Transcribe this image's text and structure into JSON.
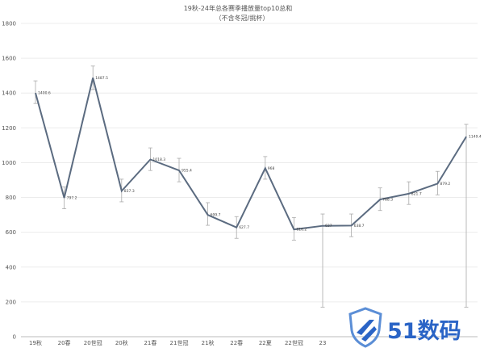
{
  "chart_data": {
    "type": "line",
    "title": "19秋-24年总各赛季播放量top10总和",
    "subtitle": "（不含冬冠/挑杯）",
    "xlabel": "",
    "ylabel": "",
    "ylim": [
      0,
      1800
    ],
    "yticks": [
      0,
      200,
      400,
      600,
      800,
      1000,
      1200,
      1400,
      1600,
      1800
    ],
    "grid": true,
    "legend": "none",
    "x_tick_labels": [
      "19秋",
      "20春",
      "20世冠",
      "20秋",
      "21春",
      "21世冠",
      "21秋",
      "22春",
      "22夏",
      "22世冠",
      "23"
    ],
    "categories": [
      "19秋",
      "20春",
      "20世冠",
      "20秋",
      "21春",
      "21世冠",
      "21秋",
      "22春",
      "22夏",
      "22世冠",
      "23",
      "",
      "",
      "",
      "",
      ""
    ],
    "series": [
      {
        "values": [
          1400.6,
          797.2,
          1487.5,
          837.3,
          1018.3,
          955.4,
          699.7,
          627.7,
          968,
          616.2,
          637,
          638.7,
          788.3,
          821.7,
          879.2,
          1149.4
        ],
        "data_labels": [
          "1400.6",
          "797.2",
          "1487.5",
          "837.3",
          "1018.3",
          "955.4",
          "699.7",
          "627.7",
          "968",
          "616.2",
          "637",
          "638.7",
          "788.3",
          "821.7",
          "879.2",
          "1149.4"
        ],
        "error_low": [
          1340,
          735,
          1420,
          775,
          955,
          890,
          640,
          565,
          905,
          555,
          170,
          575,
          725,
          760,
          815,
          170
        ],
        "error_high": [
          1470,
          860,
          1555,
          905,
          1085,
          1025,
          770,
          690,
          1035,
          685,
          705,
          705,
          855,
          890,
          950,
          1220
        ],
        "color": "#5b6b80"
      }
    ]
  },
  "watermark": {
    "text": "51数码",
    "color": "#2a64c6",
    "icon": "shield-icon"
  }
}
